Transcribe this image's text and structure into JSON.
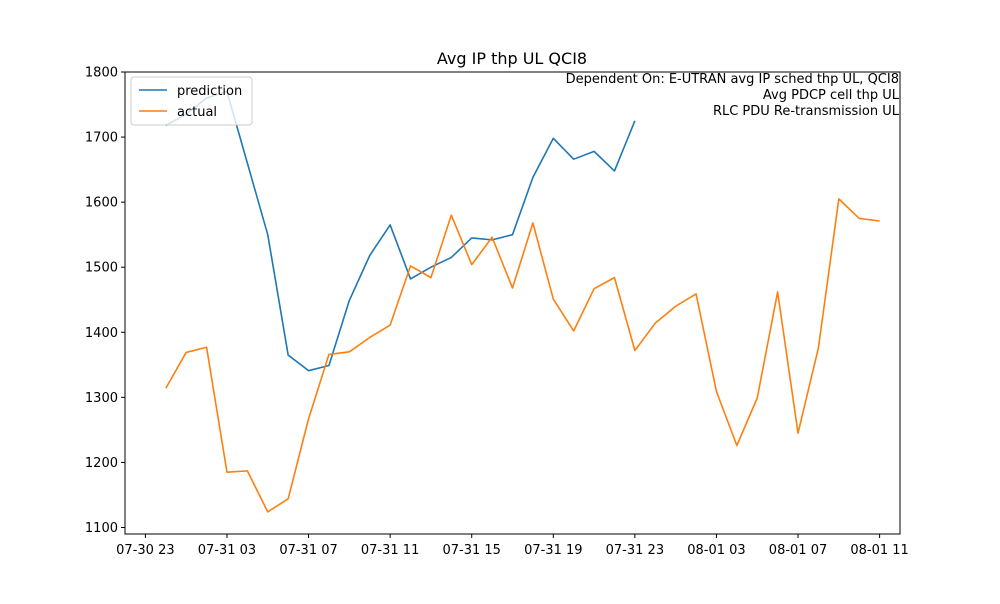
{
  "chart_data": {
    "type": "line",
    "title": "Avg IP thp UL QCI8",
    "xlabel": "",
    "ylabel": "",
    "xlim": [
      "2020-07-30 22:00",
      "2020-08-01 12:00"
    ],
    "ylim": [
      1090,
      1800
    ],
    "x_ticks": [
      "07-30 23",
      "07-31 03",
      "07-31 07",
      "07-31 11",
      "07-31 15",
      "07-31 19",
      "07-31 23",
      "08-01 03",
      "08-01 07",
      "08-01 11"
    ],
    "y_ticks": [
      1100,
      1200,
      1300,
      1400,
      1500,
      1600,
      1700,
      1800
    ],
    "legend_location": "upper-left",
    "grid": false,
    "annotations": [
      "Dependent On: E-UTRAN avg IP sched thp UL, QCI8",
      "Avg PDCP cell thp UL",
      "RLC PDU Re-transmission UL"
    ],
    "series": [
      {
        "name": "prediction",
        "color": "#1f77b4",
        "x": [
          "2020-07-31 00:00",
          "2020-07-31 01:00",
          "2020-07-31 02:00",
          "2020-07-31 03:00",
          "2020-07-31 04:00",
          "2020-07-31 05:00",
          "2020-07-31 06:00",
          "2020-07-31 07:00",
          "2020-07-31 08:00",
          "2020-07-31 09:00",
          "2020-07-31 10:00",
          "2020-07-31 11:00",
          "2020-07-31 12:00",
          "2020-07-31 13:00",
          "2020-07-31 14:00",
          "2020-07-31 15:00",
          "2020-07-31 16:00",
          "2020-07-31 17:00",
          "2020-07-31 18:00",
          "2020-07-31 19:00",
          "2020-07-31 20:00",
          "2020-07-31 21:00",
          "2020-07-31 22:00",
          "2020-07-31 23:00"
        ],
        "values": [
          1718,
          1735,
          1760,
          1770,
          1660,
          1550,
          1365,
          1341,
          1349,
          1449,
          1518,
          1565,
          1482,
          1500,
          1515,
          1545,
          1542,
          1550,
          1638,
          1698,
          1666,
          1678,
          1648,
          1725
        ]
      },
      {
        "name": "actual",
        "color": "#ff7f0e",
        "x": [
          "2020-07-31 00:00",
          "2020-07-31 01:00",
          "2020-07-31 02:00",
          "2020-07-31 03:00",
          "2020-07-31 04:00",
          "2020-07-31 05:00",
          "2020-07-31 06:00",
          "2020-07-31 07:00",
          "2020-07-31 08:00",
          "2020-07-31 09:00",
          "2020-07-31 10:00",
          "2020-07-31 11:00",
          "2020-07-31 12:00",
          "2020-07-31 13:00",
          "2020-07-31 14:00",
          "2020-07-31 15:00",
          "2020-07-31 16:00",
          "2020-07-31 17:00",
          "2020-07-31 18:00",
          "2020-07-31 19:00",
          "2020-07-31 20:00",
          "2020-07-31 21:00",
          "2020-07-31 22:00",
          "2020-07-31 23:00",
          "2020-08-01 00:00",
          "2020-08-01 01:00",
          "2020-08-01 02:00",
          "2020-08-01 03:00",
          "2020-08-01 04:00",
          "2020-08-01 05:00",
          "2020-08-01 06:00",
          "2020-08-01 07:00",
          "2020-08-01 08:00",
          "2020-08-01 09:00",
          "2020-08-01 10:00",
          "2020-08-01 11:00"
        ],
        "values": [
          1314,
          1369,
          1377,
          1185,
          1187,
          1124,
          1144,
          1267,
          1366,
          1370,
          1392,
          1411,
          1502,
          1484,
          1580,
          1504,
          1546,
          1468,
          1568,
          1451,
          1402,
          1467,
          1484,
          1372,
          1414,
          1440,
          1459,
          1309,
          1226,
          1299,
          1462,
          1245,
          1376,
          1605,
          1575,
          1571
        ]
      }
    ]
  }
}
